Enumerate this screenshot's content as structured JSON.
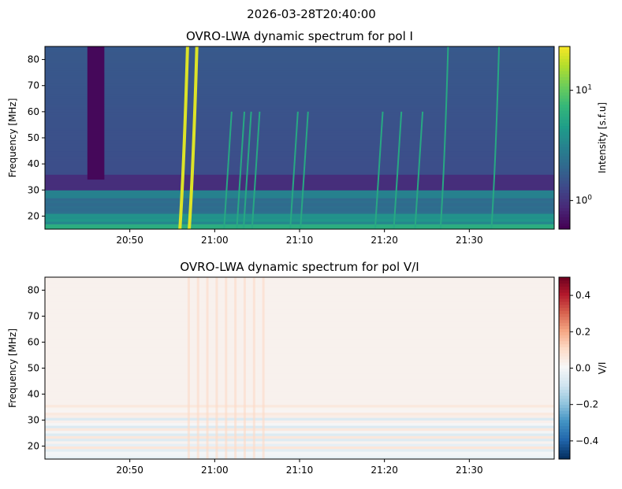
{
  "suptitle": "2026-03-28T20:40:00",
  "chart_data": [
    {
      "type": "heatmap",
      "title": "OVRO-LWA dynamic spectrum for pol I",
      "xlabel": "",
      "ylabel": "Frequency [MHz]",
      "x_ticks": [
        "20:50",
        "21:00",
        "21:10",
        "21:20",
        "21:30"
      ],
      "x_tick_minutes": [
        50,
        60,
        70,
        80,
        90
      ],
      "x_range_minutes": [
        40,
        100
      ],
      "y_ticks": [
        20,
        30,
        40,
        50,
        60,
        70,
        80
      ],
      "ylim": [
        15,
        85
      ],
      "colormap": "viridis",
      "colorbar": {
        "label": "Intensity [s.f.u]",
        "scale": "log",
        "range": [
          0.55,
          25
        ],
        "ticks": [
          {
            "value": 1,
            "label": "10",
            "exp": "0"
          },
          {
            "value": 10,
            "label": "10",
            "exp": "1"
          }
        ]
      },
      "bursts_minutes": [
        56.8,
        57.9,
        62.0,
        63.5,
        64.3,
        65.3,
        69.8,
        71.0,
        79.8,
        82.0,
        84.5,
        87.5,
        93.5
      ],
      "strongest_bursts_minutes": [
        56.8,
        57.9
      ],
      "dark_band_minutes": [
        45.0,
        47.0
      ]
    },
    {
      "type": "heatmap",
      "title": "OVRO-LWA dynamic spectrum for pol V/I",
      "xlabel": "",
      "ylabel": "Frequency [MHz]",
      "x_ticks": [
        "20:50",
        "21:00",
        "21:10",
        "21:20",
        "21:30"
      ],
      "x_tick_minutes": [
        50,
        60,
        70,
        80,
        90
      ],
      "x_range_minutes": [
        40,
        100
      ],
      "y_ticks": [
        20,
        30,
        40,
        50,
        60,
        70,
        80
      ],
      "ylim": [
        15,
        85
      ],
      "colormap": "RdBu_r",
      "colorbar": {
        "label": "V/I",
        "scale": "linear",
        "range": [
          -0.5,
          0.5
        ],
        "ticks": [
          {
            "value": 0.4,
            "label": "0.4"
          },
          {
            "value": 0.2,
            "label": "0.2"
          },
          {
            "value": 0.0,
            "label": "0.0"
          },
          {
            "value": -0.2,
            "label": "−0.2"
          },
          {
            "value": -0.4,
            "label": "−0.4"
          }
        ]
      }
    }
  ]
}
